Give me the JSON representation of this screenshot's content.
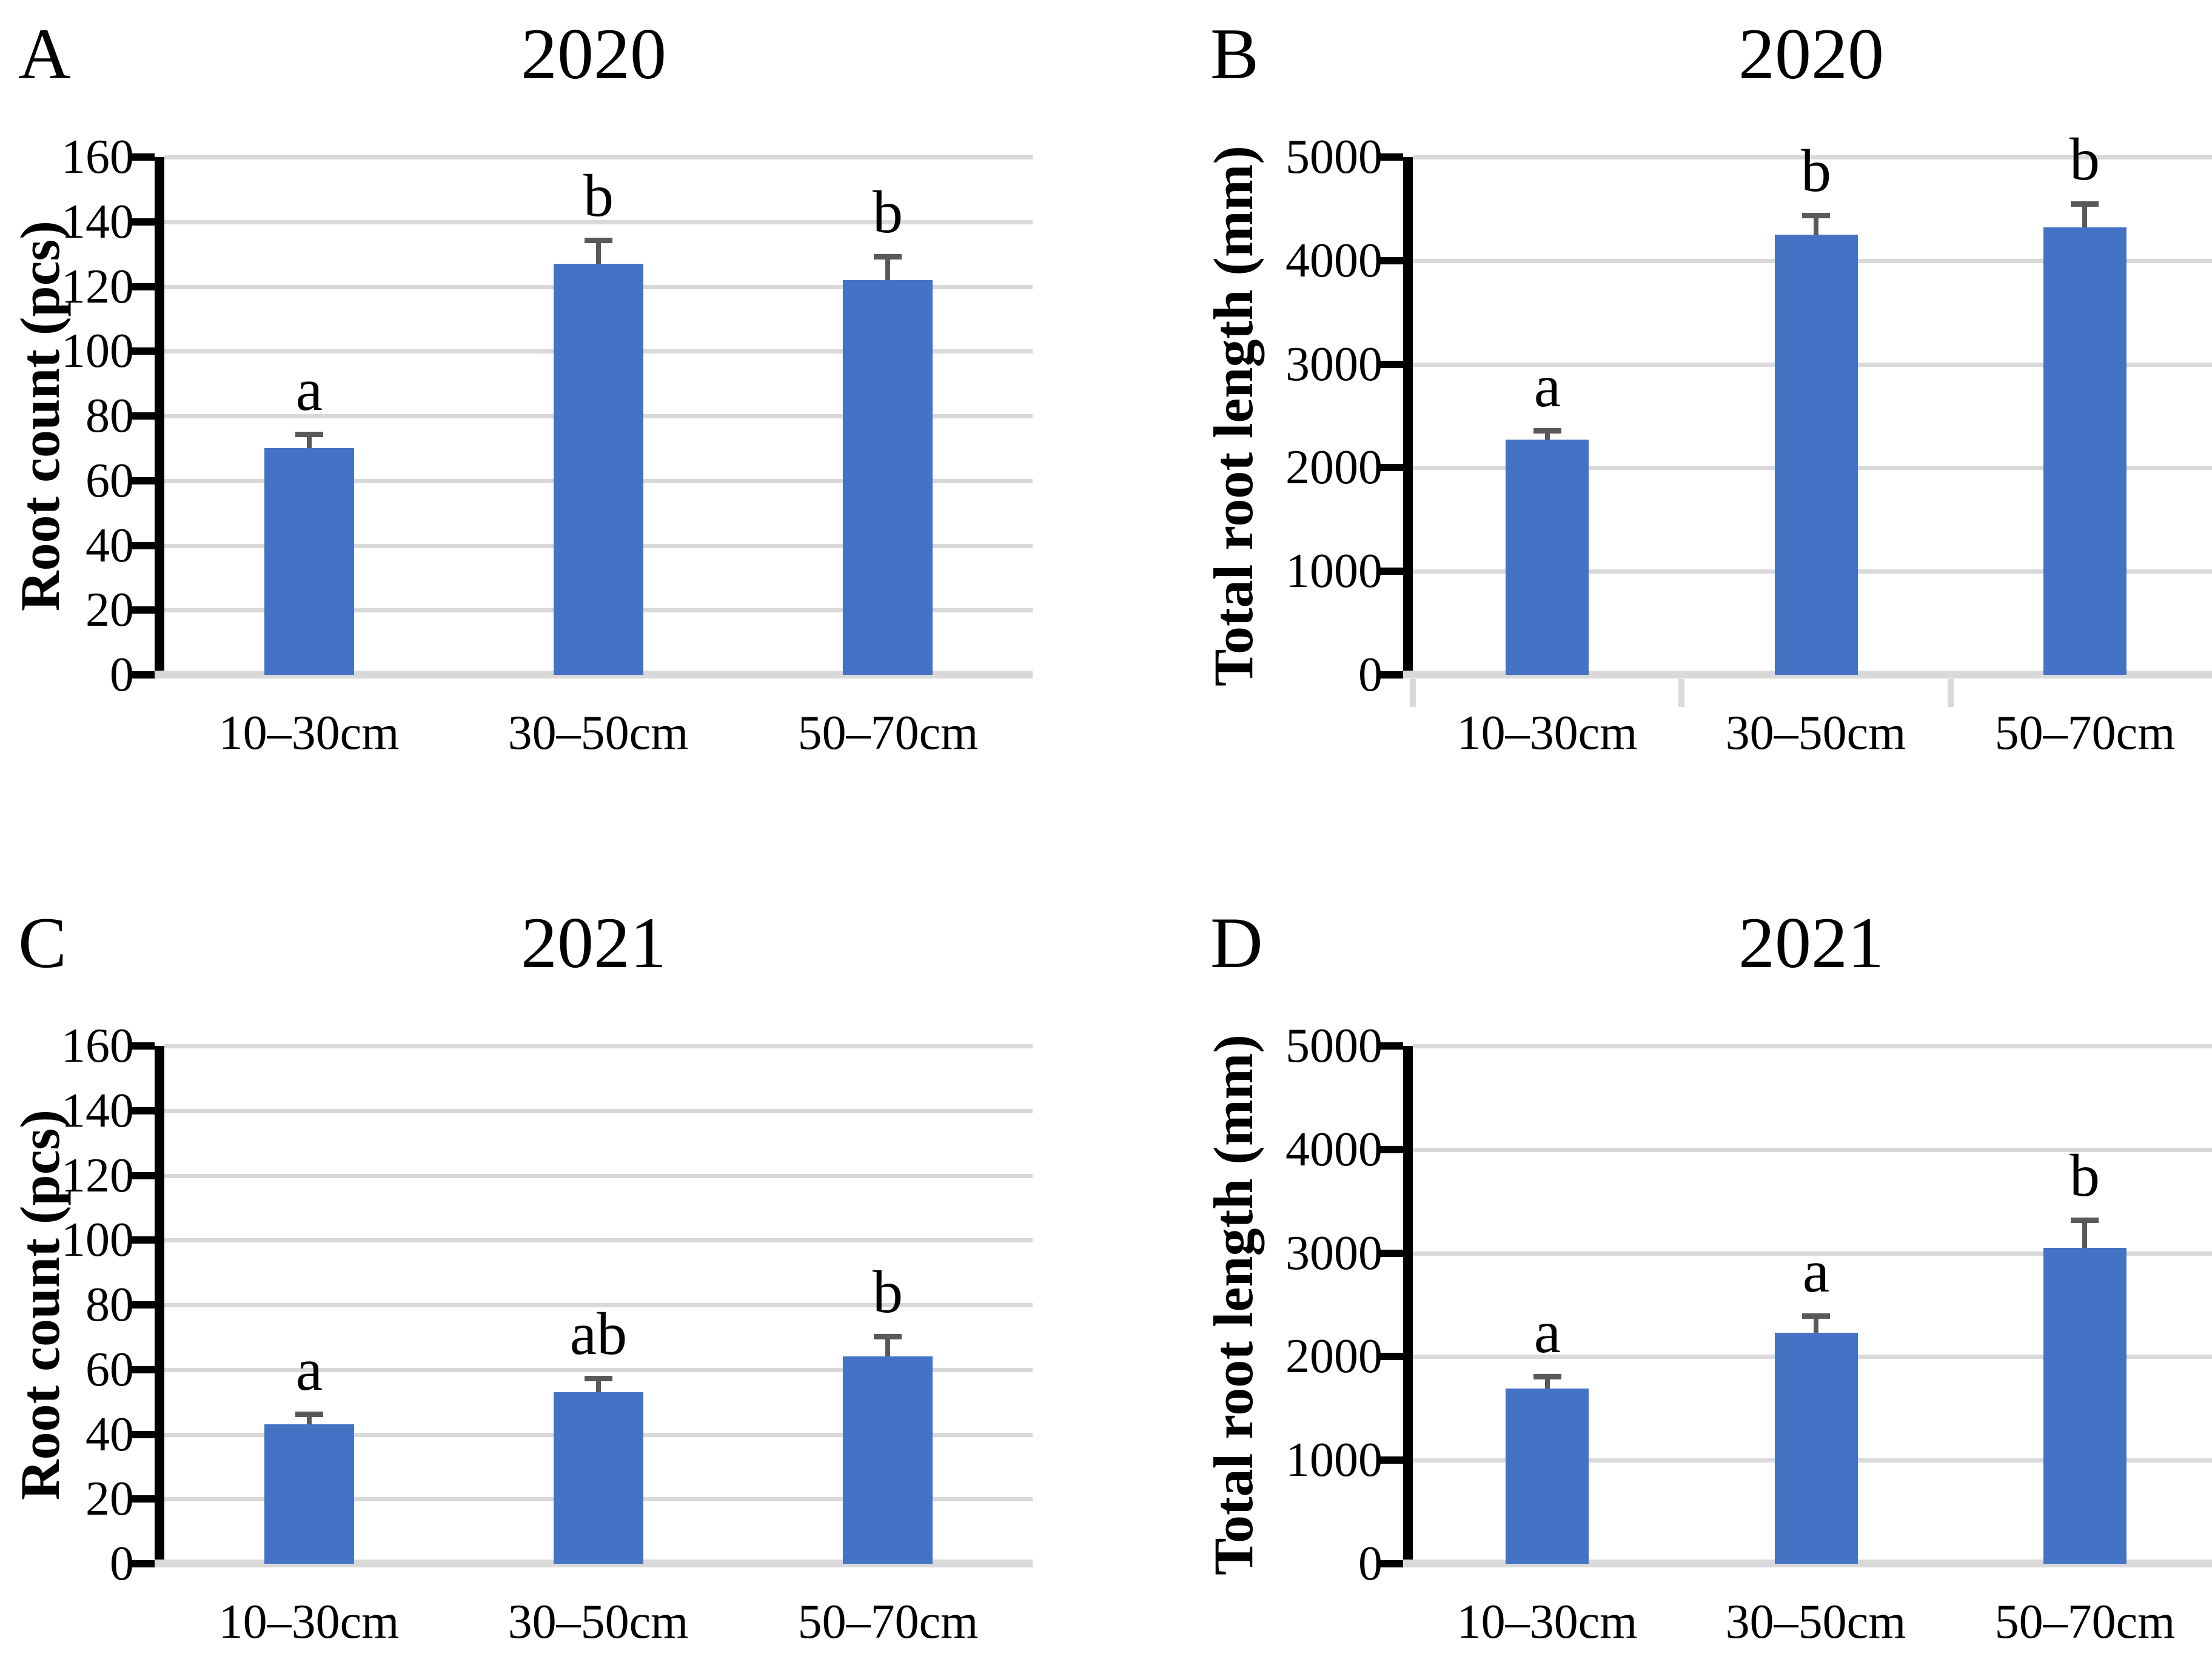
{
  "figure": {
    "bar_color": "#4472C4",
    "error_color": "#595959",
    "grid_color": "#D9D9D9",
    "axis_color": "#000000"
  },
  "chart_data": [
    {
      "type": "bar",
      "panel": "A",
      "title": "2020",
      "ylabel": "Root count (pcs)",
      "xlabel": "",
      "categories": [
        "10–30cm",
        "30–50cm",
        "50–70cm"
      ],
      "values": [
        70,
        127,
        122
      ],
      "errors": [
        5,
        8,
        8
      ],
      "sig_letters": [
        "a",
        "b",
        "b"
      ],
      "ylim": [
        0,
        160
      ],
      "ytick_step": 20,
      "grid": true,
      "legend": null,
      "x_axis_ticks": false
    },
    {
      "type": "bar",
      "panel": "B",
      "title": "2020",
      "ylabel": "Total root length (mm)",
      "xlabel": "",
      "categories": [
        "10–30cm",
        "30–50cm",
        "50–70cm"
      ],
      "values": [
        2270,
        4250,
        4320
      ],
      "errors": [
        110,
        210,
        250
      ],
      "sig_letters": [
        "a",
        "b",
        "b"
      ],
      "ylim": [
        0,
        5000
      ],
      "ytick_step": 1000,
      "grid": true,
      "legend": null,
      "x_axis_ticks": true
    },
    {
      "type": "bar",
      "panel": "C",
      "title": "2021",
      "ylabel": "Root count (pcs)",
      "xlabel": "",
      "categories": [
        "10–30cm",
        "30–50cm",
        "50–70cm"
      ],
      "values": [
        43,
        53,
        64
      ],
      "errors": [
        4,
        5,
        7
      ],
      "sig_letters": [
        "a",
        "ab",
        "b"
      ],
      "ylim": [
        0,
        160
      ],
      "ytick_step": 20,
      "grid": true,
      "legend": null,
      "x_axis_ticks": false
    },
    {
      "type": "bar",
      "panel": "D",
      "title": "2021",
      "ylabel": "Total root length (mm)",
      "xlabel": "",
      "categories": [
        "10–30cm",
        "30–50cm",
        "50–70cm"
      ],
      "values": [
        1690,
        2230,
        3050
      ],
      "errors": [
        140,
        190,
        290
      ],
      "sig_letters": [
        "a",
        "a",
        "b"
      ],
      "ylim": [
        0,
        5000
      ],
      "ytick_step": 1000,
      "grid": true,
      "legend": null,
      "x_axis_ticks": false
    }
  ]
}
